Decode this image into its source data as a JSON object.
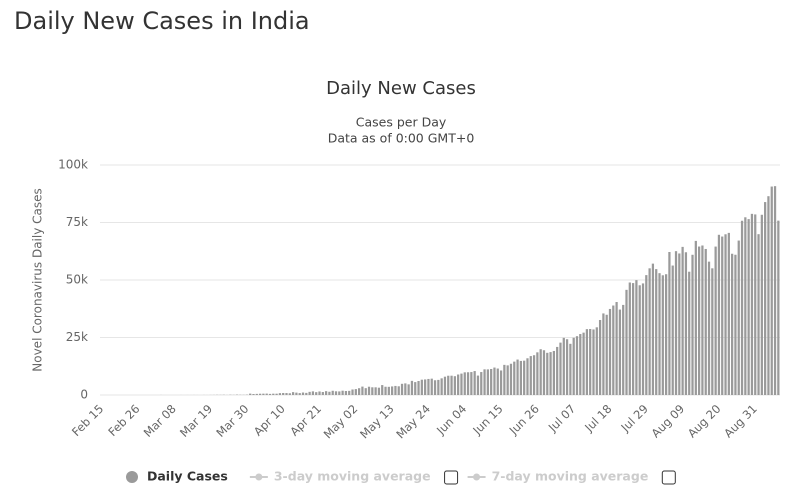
{
  "page_title": "Daily New Cases in India",
  "chart_data": {
    "type": "bar",
    "title": "Daily New Cases",
    "subtitle": [
      "Cases per Day",
      "Data as of 0:00 GMT+0"
    ],
    "y_label": "Novel Coronavirus Daily Cases",
    "ylim": [
      0,
      100000
    ],
    "yticks": [
      0,
      {
        "value": 25000,
        "label": "25k"
      },
      {
        "value": 50000,
        "label": "50k"
      },
      {
        "value": 75000,
        "label": "75k"
      },
      {
        "value": 100000,
        "label": "100k"
      }
    ],
    "grid": true,
    "categories": [
      "Feb 15",
      null,
      null,
      null,
      null,
      null,
      null,
      null,
      null,
      null,
      null,
      "Feb 26",
      null,
      null,
      null,
      null,
      null,
      null,
      null,
      null,
      null,
      null,
      "Mar 08",
      null,
      null,
      null,
      null,
      null,
      null,
      null,
      null,
      null,
      null,
      "Mar 19",
      null,
      null,
      null,
      null,
      null,
      null,
      null,
      null,
      null,
      null,
      "Mar 30",
      null,
      null,
      null,
      null,
      null,
      null,
      null,
      null,
      null,
      null,
      "Apr 10",
      null,
      null,
      null,
      null,
      null,
      null,
      null,
      null,
      null,
      null,
      "Apr 21",
      null,
      null,
      null,
      null,
      null,
      null,
      null,
      null,
      null,
      null,
      "May 02",
      null,
      null,
      null,
      null,
      null,
      null,
      null,
      null,
      null,
      null,
      "May 13",
      null,
      null,
      null,
      null,
      null,
      null,
      null,
      null,
      null,
      null,
      "May 24",
      null,
      null,
      null,
      null,
      null,
      null,
      null,
      null,
      null,
      null,
      "Jun 04",
      null,
      null,
      null,
      null,
      null,
      null,
      null,
      null,
      null,
      null,
      "Jun 15",
      null,
      null,
      null,
      null,
      null,
      null,
      null,
      null,
      null,
      null,
      "Jun 26",
      null,
      null,
      null,
      null,
      null,
      null,
      null,
      null,
      null,
      null,
      "Jul 07",
      null,
      null,
      null,
      null,
      null,
      null,
      null,
      null,
      null,
      null,
      "Jul 18",
      null,
      null,
      null,
      null,
      null,
      null,
      null,
      null,
      null,
      null,
      "Jul 29",
      null,
      null,
      null,
      null,
      null,
      null,
      null,
      null,
      null,
      null,
      "Aug 09",
      null,
      null,
      null,
      null,
      null,
      null,
      null,
      null,
      null,
      null,
      "Aug 20",
      null,
      null,
      null,
      null,
      null,
      null,
      null,
      null,
      null,
      null,
      "Aug 31",
      null,
      null,
      null,
      null,
      null,
      null,
      null
    ],
    "series": [
      {
        "name": "Daily Cases",
        "color": "#9a9a9a",
        "values": [
          0,
          0,
          0,
          0,
          0,
          0,
          0,
          0,
          0,
          0,
          0,
          0,
          0,
          0,
          0,
          0,
          2,
          1,
          22,
          2,
          1,
          3,
          5,
          4,
          13,
          6,
          11,
          10,
          20,
          11,
          6,
          23,
          14,
          38,
          50,
          86,
          66,
          103,
          37,
          121,
          70,
          160,
          100,
          87,
          146,
          601,
          424,
          486,
          560,
          579,
          609,
          484,
          573,
          565,
          813,
          871,
          854,
          758,
          1243,
          1034,
          835,
          1076,
          922,
          1371,
          1580,
          1239,
          1537,
          1292,
          1667,
          1408,
          1835,
          1607,
          1561,
          1873,
          1738,
          1801,
          2396,
          2564,
          2952,
          3656,
          2971,
          3602,
          3344,
          3339,
          3175,
          4311,
          3592,
          3562,
          3726,
          3941,
          3787,
          4864,
          5050,
          4630,
          6147,
          5611,
          6088,
          6654,
          6767,
          6977,
          7111,
          6414,
          6566,
          7246,
          7964,
          8380,
          8392,
          8171,
          8909,
          9304,
          9851,
          9887,
          9971,
          10408,
          8442,
          9985,
          11156,
          11135,
          11306,
          11929,
          11502,
          10667,
          13103,
          12881,
          13586,
          14516,
          15413,
          14821,
          14933,
          15968,
          16922,
          17296,
          18552,
          19906,
          19459,
          18339,
          18653,
          19148,
          20903,
          22771,
          24850,
          24248,
          22252,
          24879,
          25571,
          26506,
          27114,
          28637,
          28701,
          28498,
          29429,
          32607,
          35468,
          34884,
          37411,
          38902,
          40425,
          37148,
          39170,
          45720,
          48916,
          48661,
          49931,
          47703,
          48513,
          52123,
          55078,
          57118,
          54735,
          52972,
          52050,
          52509,
          62170,
          56282,
          62538,
          61537,
          64399,
          62064,
          53601,
          60963,
          66999,
          64553,
          65002,
          63490,
          57981,
          55079,
          64531,
          69652,
          68898,
          69878,
          70488,
          61408,
          60975,
          67151,
          75760,
          77266,
          76472,
          78761,
          78512,
          69921,
          78357,
          83883,
          86432,
          90632,
          90802,
          75809
        ]
      }
    ],
    "legend_inactive": [
      "3-day moving average",
      "7-day moving average"
    ]
  }
}
